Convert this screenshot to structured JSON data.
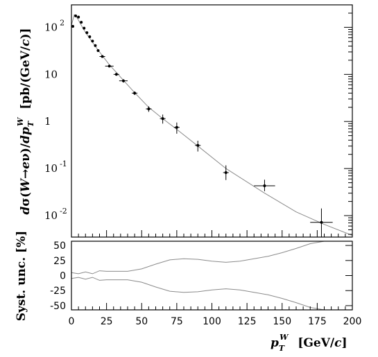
{
  "chart_data": [
    {
      "type": "scatter",
      "title": "",
      "xlabel": "p_T^W [GeV/c]",
      "ylabel": "dσ(W→eν)/dp_T^W [pb/(GeV/c)]",
      "xlim": [
        0,
        200
      ],
      "ylim": [
        0.0035,
        300
      ],
      "yscale": "log",
      "yticks": [
        {
          "value": 100,
          "label": "10",
          "exp": "2"
        },
        {
          "value": 10,
          "label": "10",
          "exp": ""
        },
        {
          "value": 1,
          "label": "1",
          "exp": ""
        },
        {
          "value": 0.1,
          "label": "10",
          "exp": "-1"
        },
        {
          "value": 0.01,
          "label": "10",
          "exp": "-2"
        }
      ],
      "series": [
        {
          "kind": "points_with_errors",
          "x": [
            1,
            3,
            5,
            7,
            9,
            11,
            13,
            15,
            17,
            19,
            22,
            27,
            32,
            37,
            45,
            55,
            65,
            75,
            90,
            110,
            137.5,
            178
          ],
          "xerr": [
            1,
            1,
            1,
            1,
            1,
            1,
            1,
            1,
            1,
            1,
            2,
            3,
            2,
            3,
            2,
            2,
            2,
            2,
            2,
            2,
            7.5,
            8
          ],
          "y": [
            105,
            175,
            165,
            128,
            96,
            77,
            63,
            51,
            41,
            32,
            24,
            15,
            10,
            7.3,
            4.0,
            1.85,
            1.15,
            0.75,
            0.31,
            0.082,
            0.043,
            0.0072
          ],
          "yerr_hi": [
            5,
            8,
            8,
            6,
            5,
            4,
            3,
            2.5,
            2,
            1.5,
            1,
            0.8,
            0.6,
            0.6,
            0.35,
            0.25,
            0.25,
            0.2,
            0.08,
            0.035,
            0.015,
            0.007
          ],
          "yerr_lo": [
            5,
            8,
            8,
            6,
            5,
            4,
            3,
            2.5,
            2,
            1.5,
            1,
            0.8,
            0.6,
            0.6,
            0.35,
            0.25,
            0.25,
            0.2,
            0.08,
            0.025,
            0.01,
            0.0043
          ]
        },
        {
          "kind": "theory_curve",
          "x": [
            0,
            2,
            4,
            6,
            8,
            10,
            14,
            18,
            22,
            27,
            32,
            37,
            45,
            55,
            65,
            75,
            90,
            110,
            137.5,
            160,
            180,
            200
          ],
          "y": [
            110,
            185,
            160,
            125,
            98,
            78,
            53,
            36,
            25,
            16,
            11,
            7.5,
            4.1,
            2.0,
            1.15,
            0.68,
            0.3,
            0.1,
            0.03,
            0.012,
            0.0065,
            0.0038
          ]
        }
      ]
    },
    {
      "type": "line",
      "title": "",
      "xlabel": "p_T^W [GeV/c]",
      "ylabel": "Syst. unc. [%]",
      "xlim": [
        0,
        200
      ],
      "ylim": [
        -57,
        57
      ],
      "xticks": [
        0,
        25,
        50,
        75,
        100,
        125,
        150,
        175,
        200
      ],
      "yticks": [
        50,
        25,
        0,
        -25,
        -50
      ],
      "series": [
        {
          "kind": "upper_band",
          "x": [
            0,
            5,
            10,
            15,
            20,
            25,
            30,
            40,
            50,
            60,
            70,
            80,
            90,
            100,
            110,
            120,
            130,
            140,
            150,
            160,
            170,
            180
          ],
          "y": [
            5,
            3,
            6,
            3,
            8,
            7,
            7,
            7,
            11,
            19,
            26,
            28,
            27,
            24,
            22,
            24,
            28,
            32,
            38,
            45,
            53,
            60
          ]
        },
        {
          "kind": "lower_band",
          "x": [
            0,
            5,
            10,
            15,
            20,
            25,
            30,
            40,
            50,
            60,
            70,
            80,
            90,
            100,
            110,
            120,
            130,
            140,
            150,
            160,
            170,
            180
          ],
          "y": [
            -5,
            -3,
            -6,
            -3,
            -8,
            -7,
            -7,
            -7,
            -11,
            -19,
            -26,
            -28,
            -27,
            -24,
            -22,
            -24,
            -28,
            -32,
            -38,
            -45,
            -53,
            -60
          ]
        }
      ]
    }
  ]
}
